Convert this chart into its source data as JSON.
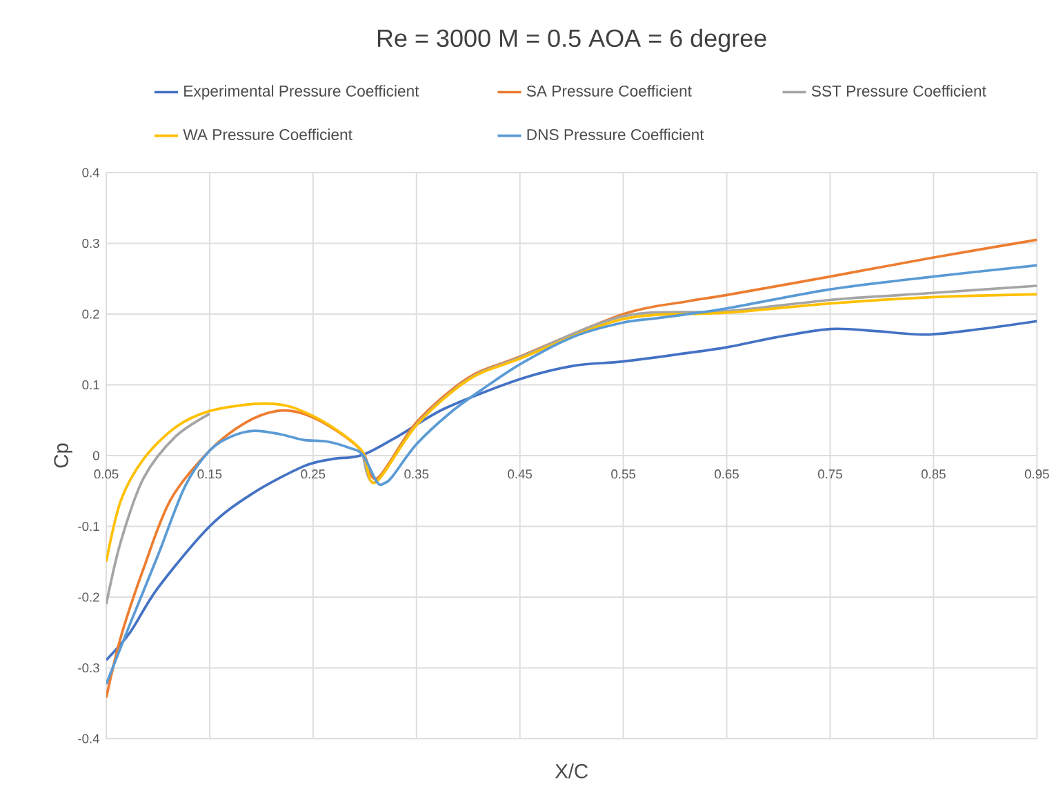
{
  "chart_data": {
    "type": "line",
    "title": "Re = 3000  M = 0.5  AOA = 6 degree",
    "xlabel": "X/C",
    "ylabel": "Cp",
    "xlim": [
      0.05,
      0.95
    ],
    "ylim": [
      -0.4,
      0.4
    ],
    "xticks": [
      0.05,
      0.15,
      0.25,
      0.35,
      0.45,
      0.55,
      0.65,
      0.75,
      0.85,
      0.95
    ],
    "yticks": [
      -0.4,
      -0.3,
      -0.2,
      -0.1,
      0,
      0.1,
      0.2,
      0.3,
      0.4
    ],
    "grid": true,
    "legend": "top",
    "series": [
      {
        "name": "Experimental Pressure Coefficient",
        "color": "#4472c4",
        "x": [
          0.05,
          0.073,
          0.1,
          0.15,
          0.192,
          0.241,
          0.268,
          0.298,
          0.334,
          0.378,
          0.45,
          0.502,
          0.55,
          0.612,
          0.65,
          0.697,
          0.75,
          0.794,
          0.843,
          0.896,
          0.95
        ],
        "values": [
          -0.289,
          -0.25,
          -0.187,
          -0.1,
          -0.053,
          -0.015,
          -0.005,
          0.001,
          0.029,
          0.067,
          0.108,
          0.127,
          0.133,
          0.145,
          0.153,
          0.167,
          0.179,
          0.176,
          0.171,
          0.179,
          0.19
        ]
      },
      {
        "name": "SA Pressure Coefficient",
        "color": "#ed7d31",
        "x": [
          0.05,
          0.064,
          0.086,
          0.112,
          0.15,
          0.184,
          0.215,
          0.241,
          0.272,
          0.298,
          0.312,
          0.35,
          0.4,
          0.45,
          0.55,
          0.612,
          0.65,
          0.75,
          0.85,
          0.95
        ],
        "values": [
          -0.342,
          -0.257,
          -0.16,
          -0.063,
          0.007,
          0.046,
          0.063,
          0.059,
          0.036,
          0.005,
          -0.032,
          0.047,
          0.11,
          0.14,
          0.2,
          0.218,
          0.227,
          0.253,
          0.28,
          0.305
        ]
      },
      {
        "name": "SST Pressure Coefficient",
        "color": "#a5a5a5",
        "x": [
          0.05,
          0.064,
          0.086,
          0.117,
          0.15,
          0.193,
          0.223,
          0.25,
          0.276,
          0.298,
          0.31,
          0.35,
          0.4,
          0.45,
          0.55,
          0.65,
          0.75,
          0.85,
          0.95
        ],
        "values": [
          -0.21,
          -0.122,
          -0.032,
          0.027,
          0.059,
          null,
          null,
          null,
          null,
          0.005,
          -0.038,
          0.044,
          0.108,
          0.139,
          0.197,
          0.204,
          0.22,
          0.23,
          0.24
        ]
      },
      {
        "name": "WA Pressure Coefficient",
        "color": "#ffc000",
        "x": [
          0.05,
          0.064,
          0.086,
          0.117,
          0.15,
          0.193,
          0.223,
          0.25,
          0.276,
          0.298,
          0.31,
          0.35,
          0.4,
          0.45,
          0.55,
          0.65,
          0.75,
          0.85,
          0.95
        ],
        "values": [
          -0.15,
          -0.064,
          -0.005,
          0.04,
          0.063,
          0.073,
          0.071,
          0.056,
          0.033,
          0.005,
          -0.038,
          0.043,
          0.107,
          0.137,
          0.193,
          0.202,
          0.215,
          0.224,
          0.228
        ]
      },
      {
        "name": "DNS Pressure Coefficient",
        "color": "#5b9bd5",
        "x": [
          0.05,
          0.073,
          0.1,
          0.126,
          0.15,
          0.171,
          0.193,
          0.219,
          0.241,
          0.263,
          0.285,
          0.298,
          0.312,
          0.319,
          0.327,
          0.35,
          0.383,
          0.413,
          0.45,
          0.502,
          0.55,
          0.587,
          0.65,
          0.75,
          0.85,
          0.95
        ],
        "values": [
          -0.323,
          -0.238,
          -0.141,
          -0.044,
          0.007,
          0.027,
          0.035,
          0.03,
          0.022,
          0.02,
          0.011,
          0.001,
          -0.038,
          -0.039,
          -0.029,
          0.016,
          0.061,
          0.093,
          0.129,
          0.168,
          0.188,
          0.195,
          0.208,
          0.235,
          0.253,
          0.269
        ]
      }
    ]
  }
}
